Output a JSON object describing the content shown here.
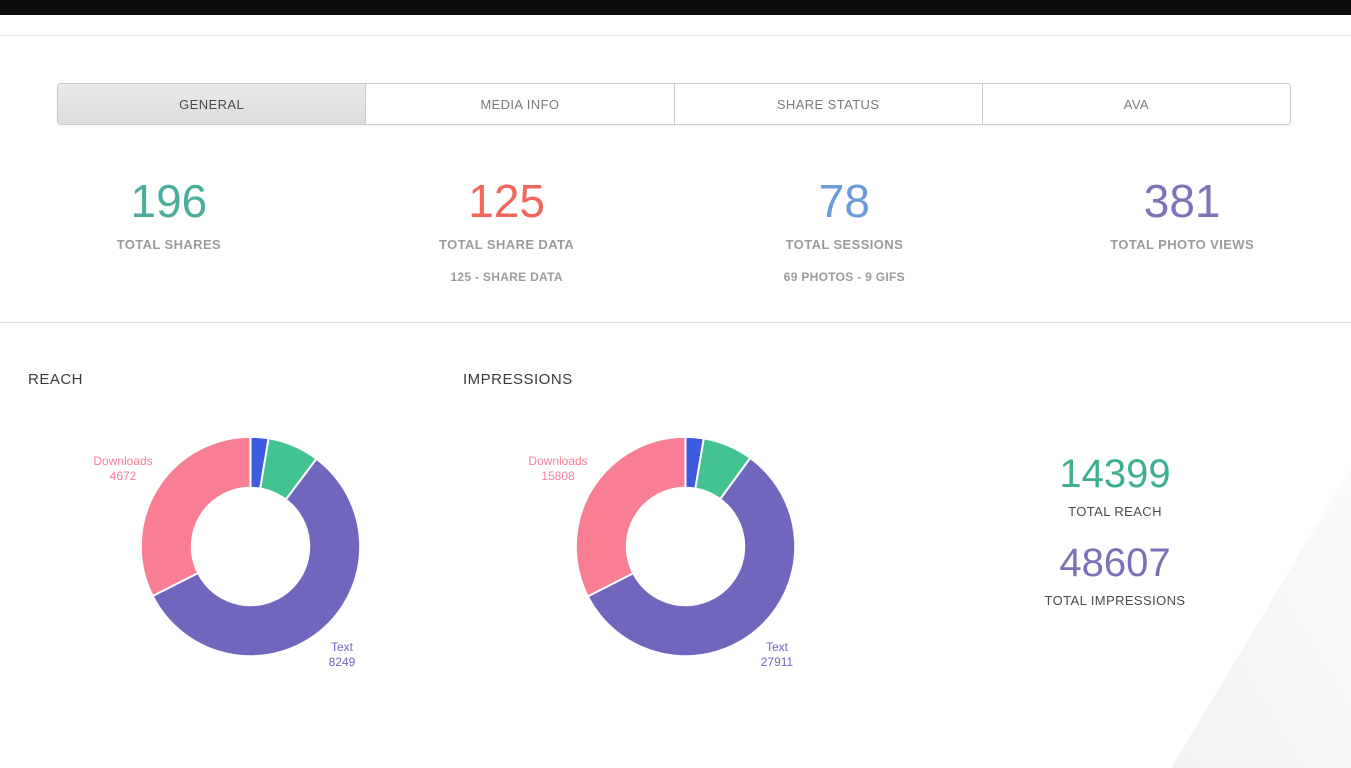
{
  "tabs": {
    "items": [
      {
        "label": "GENERAL",
        "active": true
      },
      {
        "label": "MEDIA INFO",
        "active": false
      },
      {
        "label": "SHARE STATUS",
        "active": false
      },
      {
        "label": "AVA",
        "active": false
      }
    ]
  },
  "stats": {
    "items": [
      {
        "value": "196",
        "label": "TOTAL SHARES",
        "sub": "",
        "color": "#4bae9c"
      },
      {
        "value": "125",
        "label": "TOTAL SHARE DATA",
        "sub": "125 - SHARE DATA",
        "color": "#f4655c"
      },
      {
        "value": "78",
        "label": "TOTAL SESSIONS",
        "sub": "69 PHOTOS - 9 GIFS",
        "color": "#6a9bd8"
      },
      {
        "value": "381",
        "label": "TOTAL PHOTO VIEWS",
        "sub": "",
        "color": "#7e72b8"
      }
    ]
  },
  "chart_data": [
    {
      "type": "pie",
      "donut": true,
      "title": "REACH",
      "total": 14399,
      "segments": [
        {
          "label": "",
          "value": 380,
          "color": "#3d5be0"
        },
        {
          "label": "",
          "value": 1098,
          "color": "#44c392"
        },
        {
          "label": "Text",
          "value": 8249,
          "color": "#7166bd"
        },
        {
          "label": "Downloads",
          "value": 4672,
          "color": "#f77e93"
        }
      ]
    },
    {
      "type": "pie",
      "donut": true,
      "title": "IMPRESSIONS",
      "total": 48607,
      "segments": [
        {
          "label": "",
          "value": 1300,
          "color": "#3d5be0"
        },
        {
          "label": "",
          "value": 3588,
          "color": "#44c392"
        },
        {
          "label": "Text",
          "value": 27911,
          "color": "#7166bd"
        },
        {
          "label": "Downloads",
          "value": 15808,
          "color": "#f77e93"
        }
      ]
    }
  ],
  "totals": {
    "reach": {
      "value": "14399",
      "label": "TOTAL REACH",
      "color": "#3eae93"
    },
    "impressions": {
      "value": "48607",
      "label": "TOTAL IMPRESSIONS",
      "color": "#7e6fb8"
    }
  }
}
